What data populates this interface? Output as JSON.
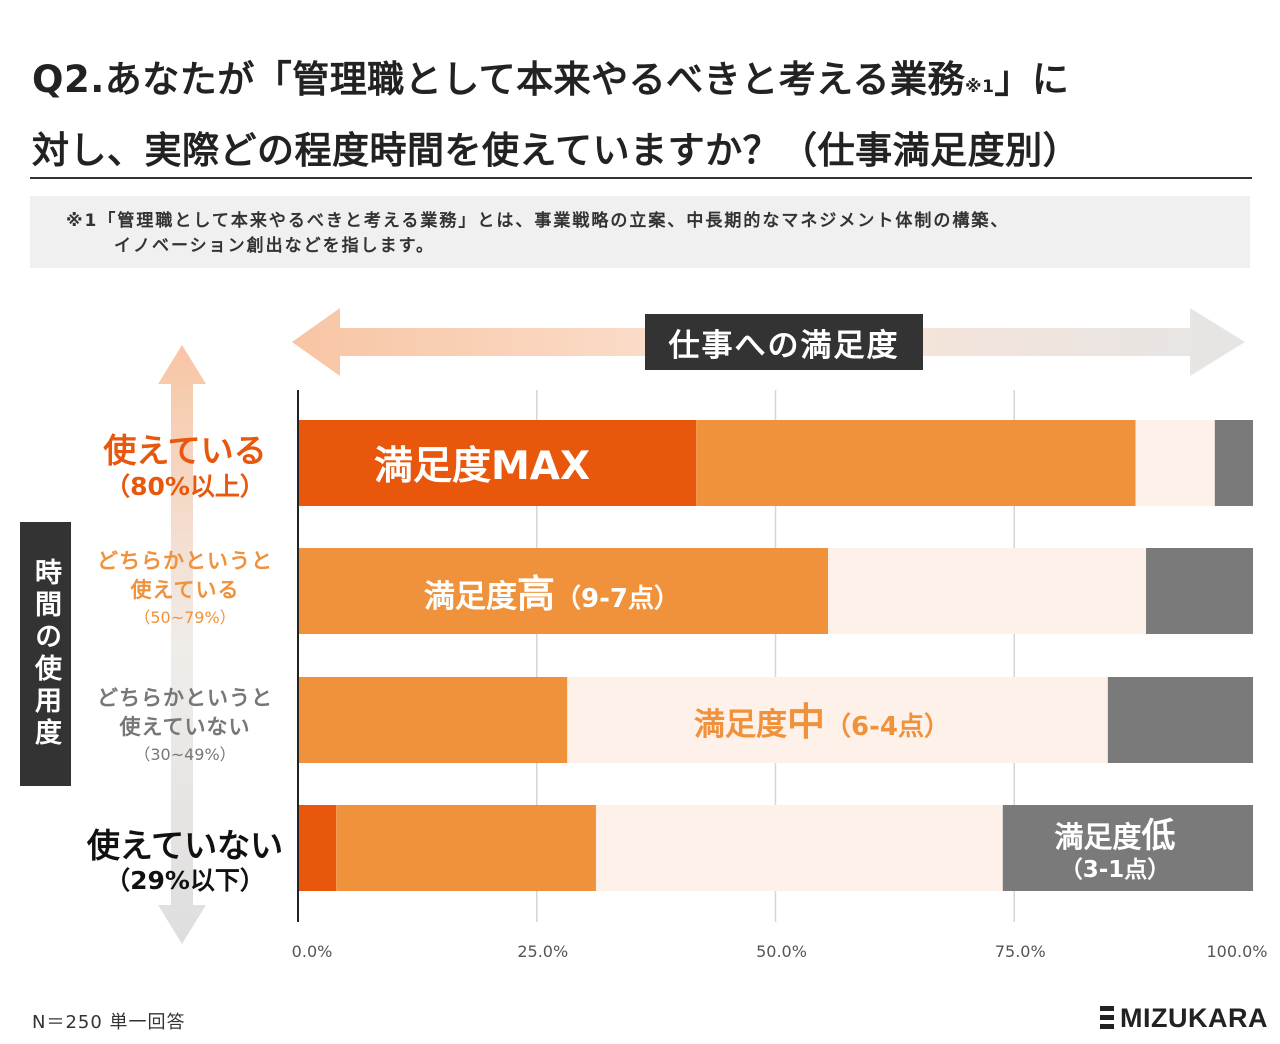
{
  "title": {
    "line1_a": "Q2.あなたが「管理職として本来やるべきと考える業務",
    "line1_mark": "※1",
    "line1_b": "」に",
    "line2": "対し、実際どの程度時間を使えていますか？（仕事満足度別）"
  },
  "note": {
    "line1": "※1「管理職として本来やるべきと考える業務」とは、事業戦略の立案、中長期的なマネジメント体制の構築、",
    "line2": "イノベーション創出などを指します。"
  },
  "x_axis_title": "仕事への満足度",
  "y_axis_title": "時間の使用度",
  "categories": [
    {
      "main": "使えている",
      "sub": "（80%以上）"
    },
    {
      "main": "どちらかというと使えている",
      "sub": "（50~79%）"
    },
    {
      "main": "どちらかというと使えていない",
      "sub": "（30~49%）"
    },
    {
      "main": "使えていない",
      "sub": "（29%以下）"
    }
  ],
  "segment_labels": {
    "max": "満足度MAX",
    "high_prefix": "満足度",
    "high_em": "高",
    "high_range": "（9-7点）",
    "mid_prefix": "満足度",
    "mid_em": "中",
    "mid_range": "（6-4点）",
    "low_prefix": "満足度",
    "low_em": "低",
    "low_range": "（3-1点）"
  },
  "colors": {
    "max": "#e8570c",
    "high": "#f0923c",
    "mid": "#fdf1ea",
    "low": "#7a7a7a",
    "arrow_left": "#f8c5a4",
    "arrow_right": "#e2e2e2"
  },
  "chart_data": {
    "type": "bar",
    "orientation": "horizontal",
    "stacked": true,
    "categories": [
      "使えている（80%以上）",
      "どちらかというと使えている（50~79%）",
      "どちらかというと使えていない（30~49%）",
      "使えていない（29%以下）"
    ],
    "series": [
      {
        "name": "満足度MAX",
        "values": [
          41.7,
          0.0,
          0.0,
          4.0
        ]
      },
      {
        "name": "満足度高（9-7点）",
        "values": [
          46.0,
          55.5,
          28.2,
          27.2
        ]
      },
      {
        "name": "満足度中（6-4点）",
        "values": [
          8.3,
          33.3,
          56.6,
          42.6
        ]
      },
      {
        "name": "満足度低（3-1点）",
        "values": [
          4.0,
          11.2,
          15.2,
          26.2
        ]
      }
    ],
    "xlim": [
      0,
      100
    ],
    "xticks": [
      "0.0%",
      "25.0%",
      "50.0%",
      "75.0%",
      "100.0%"
    ],
    "xlabel": "仕事への満足度",
    "ylabel": "時間の使用度",
    "grid": true
  },
  "footer": {
    "note": "N＝250 単一回答",
    "logo": "MIZUKARA"
  }
}
